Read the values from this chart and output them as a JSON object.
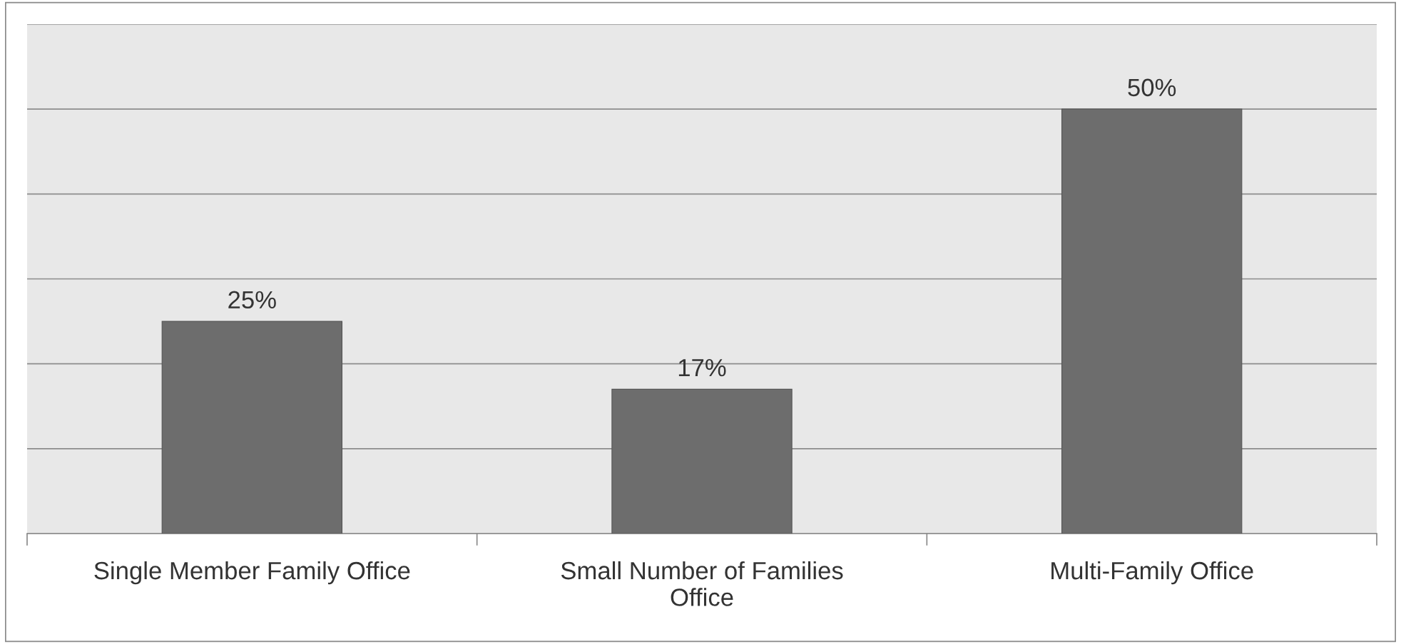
{
  "chart_data": {
    "type": "bar",
    "categories": [
      "Single Member Family Office",
      "Small Number of Families\nOffice",
      "Multi-Family Office"
    ],
    "values": [
      25,
      17,
      50
    ],
    "value_labels": [
      "25%",
      "17%",
      "50%"
    ],
    "color": "#6d6d6d",
    "ylim": [
      0,
      60
    ],
    "yticks": [
      {
        "value": 0,
        "label": null
      },
      {
        "value": 10,
        "label": null
      },
      {
        "value": 20,
        "label": null
      },
      {
        "value": 30,
        "label": null
      },
      {
        "value": 40,
        "label": null
      },
      {
        "value": 50,
        "label": null
      },
      {
        "value": 60,
        "label": null
      }
    ],
    "tick_labels": "x",
    "grid": "y",
    "legend": false
  }
}
